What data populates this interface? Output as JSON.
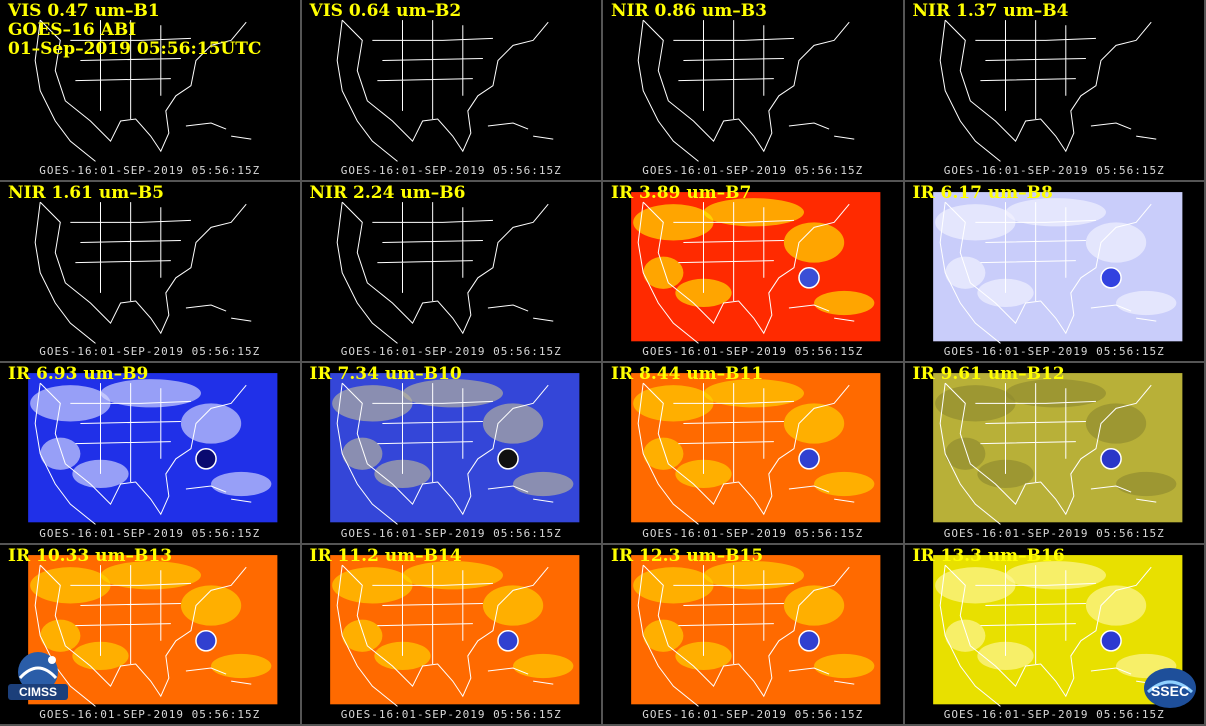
{
  "header": {
    "band_label": "VIS 0.47 um–B1",
    "satellite": "GOES–16 ABI",
    "datetime": "01–Sep–2019 05:56:15UTC"
  },
  "footer_text": "GOES-16:01-SEP-2019 05:56:15Z",
  "panels": [
    {
      "label": "VIS 0.47 um–B1",
      "style": "dark"
    },
    {
      "label": "VIS 0.64 um–B2",
      "style": "dark"
    },
    {
      "label": "NIR 0.86 um–B3",
      "style": "dark"
    },
    {
      "label": "NIR 1.37 um–B4",
      "style": "dark"
    },
    {
      "label": "NIR 1.61 um–B5",
      "style": "dark"
    },
    {
      "label": "NIR 2.24 um–B6",
      "style": "dark"
    },
    {
      "label": "IR 3.89 um–B7",
      "style": "red"
    },
    {
      "label": "IR 6.17 um–B8",
      "style": "lightblue"
    },
    {
      "label": "IR 6.93 um–B9",
      "style": "blue"
    },
    {
      "label": "IR 7.34 um–B10",
      "style": "bluegray"
    },
    {
      "label": "IR 8.44 um–B11",
      "style": "orange"
    },
    {
      "label": "IR 9.61 um–B12",
      "style": "olive"
    },
    {
      "label": "IR 10.33 um–B13",
      "style": "orange"
    },
    {
      "label": "IR 11.2 um–B14",
      "style": "orange"
    },
    {
      "label": "IR 12.3 um–B15",
      "style": "orange"
    },
    {
      "label": "IR 13.3 um–B16",
      "style": "yellow"
    }
  ],
  "logos": {
    "left": "CIMSS",
    "right": "SSEC"
  },
  "colors": {
    "label": "#ffff00",
    "footer": "#d8d8d8",
    "coastline": "#ffffff"
  }
}
